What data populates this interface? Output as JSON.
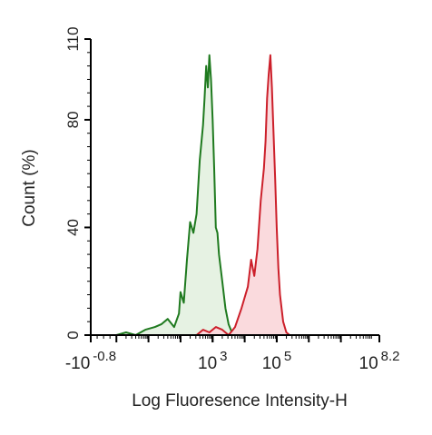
{
  "chart_data": {
    "type": "area",
    "title": "",
    "xlabel": "Log Fluoresence Intensity-H",
    "ylabel": "Count  (%)",
    "x_scale": "log-like (biexponential)",
    "xlim": [
      -0.8,
      8.2
    ],
    "ylim": [
      0,
      110
    ],
    "y_ticks": [
      {
        "value": 0,
        "label": "0"
      },
      {
        "value": 40,
        "label": "40"
      },
      {
        "value": 80,
        "label": "80"
      },
      {
        "value": 110,
        "label": "110"
      }
    ],
    "x_ticks": [
      {
        "base": "-10",
        "exp": "-0.8",
        "value": -0.8
      },
      {
        "base": "10",
        "exp": "3",
        "value": 3
      },
      {
        "base": "10",
        "exp": "5",
        "value": 5
      },
      {
        "base": "10",
        "exp": "8.2",
        "value": 8.2
      }
    ],
    "grid": false,
    "legend": "none",
    "colors": {
      "green_line": "#1f7a1f",
      "green_fill": "#e6f2e3",
      "red_line": "#cc1f2a",
      "red_fill": "#fadadd",
      "axis": "#000000"
    },
    "series": [
      {
        "color": "green",
        "x": [
          0.0,
          0.3,
          0.6,
          0.9,
          1.2,
          1.4,
          1.6,
          1.8,
          1.95,
          2.0,
          2.1,
          2.2,
          2.3,
          2.4,
          2.5,
          2.6,
          2.7,
          2.75,
          2.8,
          2.85,
          2.9,
          2.95,
          3.0,
          3.05,
          3.1,
          3.15,
          3.2,
          3.3,
          3.4,
          3.5,
          3.6,
          3.7,
          3.8
        ],
        "y": [
          0,
          1,
          0,
          2,
          3,
          4,
          6,
          3,
          8,
          16,
          12,
          28,
          42,
          38,
          45,
          65,
          78,
          88,
          100,
          92,
          104,
          95,
          80,
          62,
          40,
          38,
          30,
          20,
          10,
          4,
          1,
          0,
          0
        ]
      },
      {
        "color": "red",
        "x": [
          2.3,
          2.5,
          2.7,
          2.9,
          3.1,
          3.3,
          3.5,
          3.7,
          3.9,
          4.0,
          4.1,
          4.2,
          4.3,
          4.4,
          4.5,
          4.6,
          4.65,
          4.7,
          4.75,
          4.8,
          4.85,
          4.9,
          4.95,
          5.0,
          5.05,
          5.1,
          5.2,
          5.3,
          5.4
        ],
        "y": [
          0,
          0,
          2,
          1,
          3,
          2,
          0,
          3,
          10,
          14,
          18,
          28,
          22,
          32,
          50,
          62,
          72,
          88,
          97,
          104,
          92,
          75,
          58,
          40,
          25,
          15,
          5,
          1,
          0
        ]
      }
    ]
  }
}
